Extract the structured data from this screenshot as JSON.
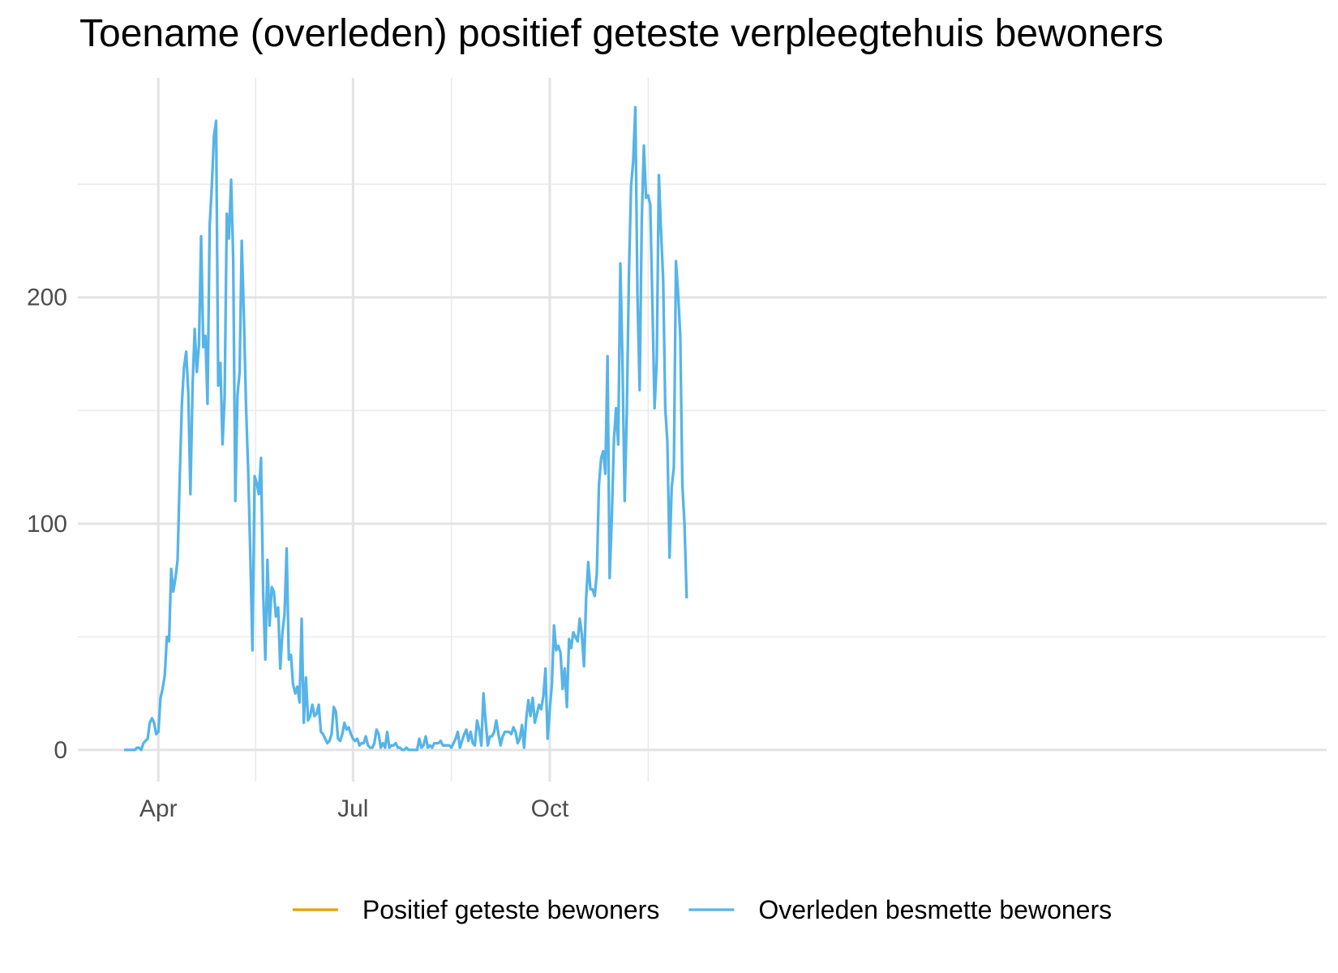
{
  "chart_data": {
    "type": "line",
    "title": "Toename (overleden) positief geteste verpleegtehuis bewoners",
    "xlabel": "",
    "ylabel": "",
    "x_start": "2020-03-01",
    "x_ticks": [
      {
        "label": "Apr",
        "date": "2020-04-01"
      },
      {
        "label": "Jul",
        "date": "2020-07-01"
      },
      {
        "label": "Oct",
        "date": "2020-10-01"
      }
    ],
    "y_ticks": [
      0,
      100,
      200
    ],
    "ylim": [
      -14,
      297
    ],
    "grid": true,
    "legend_position": "bottom",
    "colors": {
      "Positief geteste bewoners": "#E69F00",
      "Overleden besmette bewoners": "#56B4E9"
    },
    "series": [
      {
        "name": "Positief geteste bewoners",
        "values": []
      },
      {
        "name": "Overleden besmette bewoners",
        "start_date": "2020-03-16",
        "values": [
          0,
          0,
          0,
          0,
          0,
          0,
          1,
          1,
          0,
          3,
          4,
          5,
          12,
          14,
          12,
          7,
          8,
          23,
          27,
          33,
          50,
          48,
          80,
          70,
          76,
          84,
          120,
          153,
          169,
          176,
          158,
          113,
          161,
          186,
          167,
          179,
          227,
          178,
          183,
          153,
          232,
          249,
          271,
          278,
          161,
          171,
          135,
          156,
          237,
          226,
          252,
          217,
          110,
          157,
          167,
          225,
          191,
          152,
          123,
          86,
          44,
          121,
          118,
          113,
          129,
          70,
          40,
          84,
          55,
          72,
          70,
          59,
          63,
          36,
          52,
          60,
          89,
          40,
          42,
          29,
          25,
          28,
          21,
          58,
          12,
          32,
          13,
          15,
          20,
          15,
          16,
          20,
          8,
          7,
          5,
          3,
          4,
          7,
          19,
          17,
          5,
          4,
          7,
          12,
          9,
          10,
          7,
          5,
          4,
          5,
          2,
          3,
          3,
          6,
          2,
          1,
          1,
          3,
          9,
          7,
          1,
          3,
          1,
          8,
          1,
          2,
          2,
          3,
          1,
          1,
          0,
          0,
          1,
          0,
          0,
          0,
          0,
          0,
          5,
          1,
          2,
          6,
          1,
          2,
          1,
          3,
          3,
          3,
          4,
          2,
          2,
          2,
          2,
          1,
          3,
          5,
          8,
          1,
          4,
          7,
          9,
          4,
          8,
          3,
          2,
          13,
          9,
          2,
          25,
          13,
          2,
          6,
          6,
          8,
          13,
          7,
          2,
          6,
          8,
          8,
          8,
          7,
          10,
          8,
          3,
          5,
          11,
          1,
          14,
          22,
          15,
          23,
          12,
          16,
          20,
          18,
          24,
          36,
          5,
          18,
          29,
          55,
          44,
          46,
          43,
          27,
          36,
          19,
          49,
          45,
          52,
          50,
          48,
          58,
          51,
          37,
          67,
          83,
          71,
          71,
          68,
          78,
          117,
          129,
          132,
          122,
          174,
          76,
          103,
          137,
          151,
          135,
          215,
          172,
          110,
          148,
          210,
          249,
          260,
          284,
          201,
          159,
          234,
          267,
          244,
          245,
          241,
          196,
          151,
          172,
          254,
          230,
          208,
          151,
          136,
          85,
          116,
          125,
          216,
          202,
          183,
          117,
          100,
          67
        ]
      }
    ]
  }
}
